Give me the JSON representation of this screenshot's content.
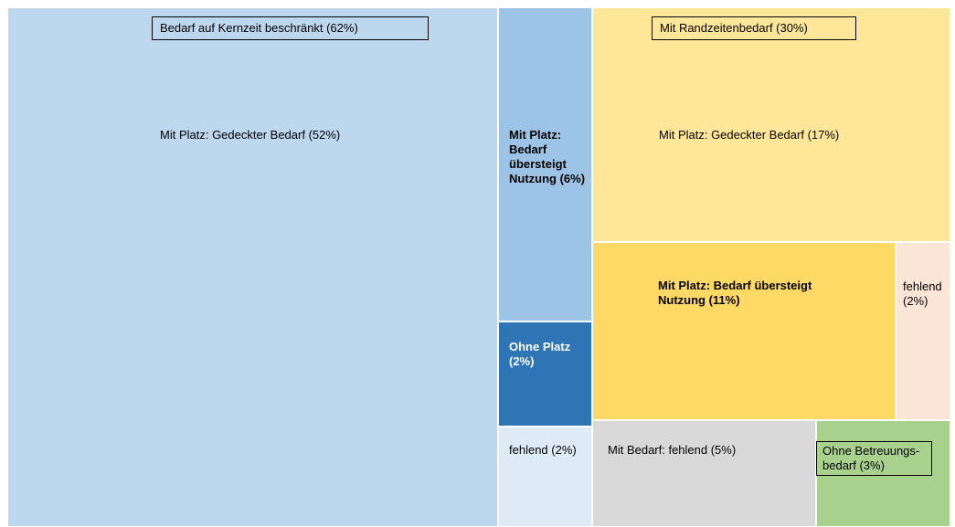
{
  "chart_data": {
    "type": "treemap",
    "groups": [
      {
        "label": "Bedarf auf Kernzeit beschränkt (62%)",
        "value": 62
      },
      {
        "label": "Mit Randzeitenbedarf (30%)",
        "value": 30
      }
    ],
    "leaves": [
      {
        "label": "Mit Platz: Gedeckter Bedarf (52%)",
        "value": 52,
        "color": "#bdd7ee",
        "bold": false
      },
      {
        "label": "Mit Platz: Bedarf übersteigt Nutzung (6%)",
        "value": 6,
        "color": "#9dc3e6",
        "bold": true
      },
      {
        "label": "Ohne Platz (2%)",
        "value": 2,
        "color": "#2e75b6",
        "bold": true
      },
      {
        "label": "fehlend (2%)",
        "value": 2,
        "color": "#deebf7",
        "bold": false
      },
      {
        "label": "Mit Platz: Gedeckter Bedarf (17%)",
        "value": 17,
        "color": "#ffe699",
        "bold": false
      },
      {
        "label": "Mit Platz: Bedarf übersteigt Nutzung (11%)",
        "value": 11,
        "color": "#ffd966",
        "bold": true
      },
      {
        "label": "fehlend (2%)",
        "value": 2,
        "color": "#fbe5d6",
        "bold": false
      },
      {
        "label": "Mit Bedarf: fehlend (5%)",
        "value": 5,
        "color": "#d9d9d9",
        "bold": false
      },
      {
        "label": "Ohne Betreuungs-bedarf (3%)",
        "value": 3,
        "color": "#a9d18e",
        "bold": false
      }
    ]
  }
}
